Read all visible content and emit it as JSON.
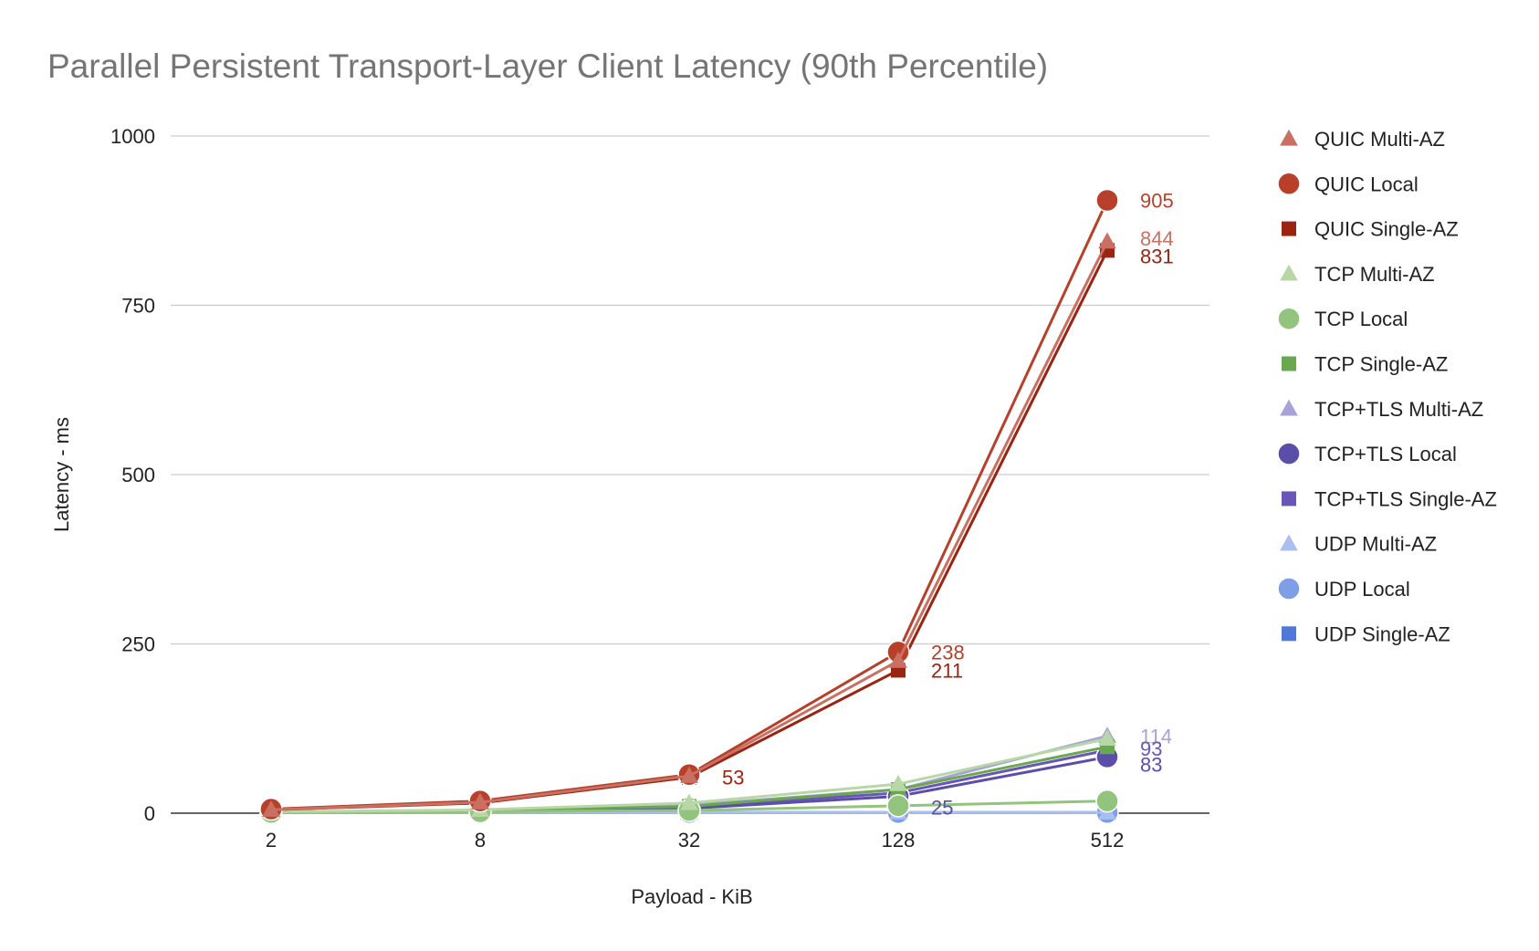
{
  "chart_data": {
    "type": "line",
    "title": "Parallel Persistent Transport-Layer Client Latency (90th Percentile)",
    "xlabel": "Payload - KiB",
    "ylabel": "Latency - ms",
    "categories": [
      "2",
      "8",
      "32",
      "128",
      "512"
    ],
    "ylim": [
      0,
      1000
    ],
    "yticks": [
      "0",
      "250",
      "500",
      "750",
      "1000"
    ],
    "grid": true,
    "legend_position": "right",
    "series": [
      {
        "name": "QUIC Multi-AZ",
        "color": "#c97062",
        "marker": "triangle",
        "values": [
          5,
          16,
          55,
          225,
          844
        ],
        "labels": [
          "",
          "",
          "",
          "",
          "844"
        ]
      },
      {
        "name": "QUIC Local",
        "color": "#b8402b",
        "marker": "circle",
        "values": [
          6,
          18,
          57,
          238,
          905
        ],
        "labels": [
          "",
          "",
          "",
          "238",
          "905"
        ]
      },
      {
        "name": "QUIC Single-AZ",
        "color": "#9a2312",
        "marker": "square",
        "values": [
          5,
          15,
          53,
          211,
          831
        ],
        "labels": [
          "",
          "",
          "53",
          "211",
          "831"
        ]
      },
      {
        "name": "TCP Multi-AZ",
        "color": "#b7d7a6",
        "marker": "triangle",
        "values": [
          2,
          5,
          15,
          43,
          110
        ],
        "labels": [
          "",
          "",
          "",
          "",
          ""
        ]
      },
      {
        "name": "TCP Local",
        "color": "#93c47d",
        "marker": "circle",
        "values": [
          1,
          2,
          4,
          11,
          18
        ],
        "labels": [
          "",
          "",
          "",
          "",
          ""
        ]
      },
      {
        "name": "TCP Single-AZ",
        "color": "#6aa84f",
        "marker": "square",
        "values": [
          2,
          4,
          10,
          35,
          98
        ],
        "labels": [
          "",
          "",
          "",
          "",
          ""
        ]
      },
      {
        "name": "TCP+TLS Multi-AZ",
        "color": "#a7a3d6",
        "marker": "triangle",
        "values": [
          2,
          4,
          12,
          35,
          114
        ],
        "labels": [
          "",
          "",
          "",
          "",
          "114"
        ]
      },
      {
        "name": "TCP+TLS Local",
        "color": "#5b4ea8",
        "marker": "circle",
        "values": [
          1,
          3,
          7,
          25,
          83
        ],
        "labels": [
          "",
          "",
          "",
          "25",
          "83"
        ]
      },
      {
        "name": "TCP+TLS Single-AZ",
        "color": "#6a56b8",
        "marker": "square",
        "values": [
          2,
          3,
          9,
          30,
          93
        ],
        "labels": [
          "",
          "",
          "",
          "",
          "93"
        ]
      },
      {
        "name": "UDP Multi-AZ",
        "color": "#a9bff0",
        "marker": "triangle",
        "values": [
          1,
          1,
          1,
          1,
          1
        ],
        "labels": [
          "",
          "",
          "",
          "",
          ""
        ]
      },
      {
        "name": "UDP Local",
        "color": "#7f9ee8",
        "marker": "circle",
        "values": [
          1,
          1,
          1,
          1,
          1
        ],
        "labels": [
          "",
          "",
          "",
          "",
          ""
        ]
      },
      {
        "name": "UDP Single-AZ",
        "color": "#4f79d9",
        "marker": "square",
        "values": [
          1,
          1,
          1,
          1,
          1
        ],
        "labels": [
          "",
          "",
          "",
          "",
          ""
        ]
      }
    ]
  }
}
